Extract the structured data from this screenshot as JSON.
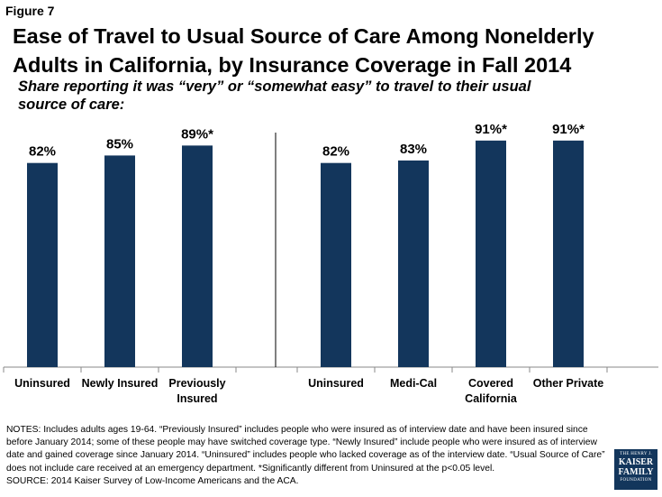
{
  "figure_label": "Figure 7",
  "title": "Ease of Travel to Usual Source of Care Among Nonelderly Adults in California, by Insurance Coverage in Fall 2014",
  "subtitle": "Share reporting it was “very” or “somewhat easy” to travel to their usual source of care:",
  "chart_data": {
    "type": "bar",
    "title": "Ease of Travel to Usual Source of Care Among Nonelderly Adults in California, by Insurance Coverage in Fall 2014",
    "subtitle": "Share reporting it was “very” or “somewhat easy” to travel to their usual source of care:",
    "xlabel": "",
    "ylabel": "",
    "ylim": [
      0,
      100
    ],
    "grid": false,
    "bar_color": "#13365c",
    "groups": [
      {
        "categories": [
          [
            "Uninsured"
          ],
          [
            "Newly Insured"
          ],
          [
            "Previously",
            "Insured"
          ]
        ],
        "values": [
          82,
          85,
          89
        ],
        "labels": [
          "82%",
          "85%",
          "89%*"
        ]
      },
      {
        "categories": [
          [
            "Uninsured"
          ],
          [
            "Medi-Cal"
          ],
          [
            "Covered",
            "California"
          ],
          [
            "Other Private"
          ]
        ],
        "values": [
          82,
          83,
          91,
          91
        ],
        "labels": [
          "82%",
          "83%",
          "91%*",
          "91%*"
        ]
      }
    ]
  },
  "notes": [
    "NOTES: Includes adults ages 19-64. “Previously Insured” includes people who were insured as of interview date and have been insured since before January 2014; some of these people may have switched coverage type. “Newly Insured” include people who were insured as of interview date and gained coverage since January 2014. “Uninsured” includes people who lacked coverage as of the interview date. “Usual Source of Care” does not include care received at an emergency department. *Significantly different from Uninsured at the p<0.05 level.",
    "SOURCE: 2014 Kaiser Survey of Low-Income Americans and the ACA."
  ],
  "logo": {
    "line1": "THE HENRY J.",
    "line2": "KAISER",
    "line3": "FAMILY",
    "line4": "FOUNDATION"
  }
}
